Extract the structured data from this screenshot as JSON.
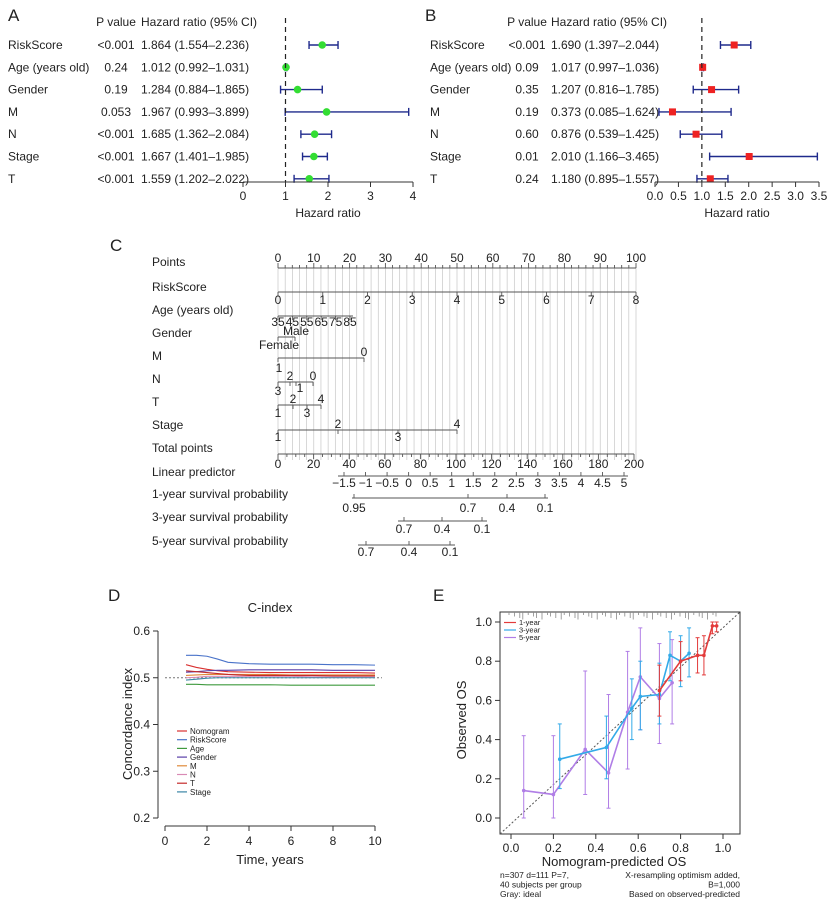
{
  "panels": {
    "a": "A",
    "b": "B",
    "c": "C",
    "d": "D",
    "e": "E"
  },
  "chart_data": [
    {
      "type": "forest",
      "panel": "A",
      "col_headers": [
        "P value",
        "Hazard ratio (95% CI)"
      ],
      "xlabel": "Hazard ratio",
      "xlim": [
        0,
        4
      ],
      "xticks": [
        "0",
        "1",
        "2",
        "3",
        "4"
      ],
      "reference": 1,
      "marker_color": "#33dd33",
      "rows": [
        {
          "label": "RiskScore",
          "p": "<0.001",
          "hr_text": "1.864 (1.554–2.236)",
          "hr": 1.864,
          "lo": 1.554,
          "hi": 2.236
        },
        {
          "label": "Age (years old)",
          "p": "0.24",
          "hr_text": "1.012 (0.992–1.031)",
          "hr": 1.012,
          "lo": 0.992,
          "hi": 1.031
        },
        {
          "label": "Gender",
          "p": "0.19",
          "hr_text": "1.284 (0.884–1.865)",
          "hr": 1.284,
          "lo": 0.884,
          "hi": 1.865
        },
        {
          "label": "M",
          "p": "0.053",
          "hr_text": "1.967 (0.993–3.899)",
          "hr": 1.967,
          "lo": 0.993,
          "hi": 3.899
        },
        {
          "label": "N",
          "p": "<0.001",
          "hr_text": "1.685 (1.362–2.084)",
          "hr": 1.685,
          "lo": 1.362,
          "hi": 2.084
        },
        {
          "label": "Stage",
          "p": "<0.001",
          "hr_text": "1.667 (1.401–1.985)",
          "hr": 1.667,
          "lo": 1.401,
          "hi": 1.985
        },
        {
          "label": "T",
          "p": "<0.001",
          "hr_text": "1.559 (1.202–2.022)",
          "hr": 1.559,
          "lo": 1.202,
          "hi": 2.022
        }
      ]
    },
    {
      "type": "forest",
      "panel": "B",
      "col_headers": [
        "P value",
        "Hazard ratio (95% CI)"
      ],
      "xlabel": "Hazard ratio",
      "xlim": [
        0,
        3.5
      ],
      "xticks": [
        "0.0",
        "0.5",
        "1.0",
        "1.5",
        "2.0",
        "2.5",
        "3.0",
        "3.5"
      ],
      "reference": 1,
      "marker_color": "#ee2222",
      "rows": [
        {
          "label": "RiskScore",
          "p": "<0.001",
          "hr_text": "1.690 (1.397–2.044)",
          "hr": 1.69,
          "lo": 1.397,
          "hi": 2.044
        },
        {
          "label": "Age (years old)",
          "p": "0.09",
          "hr_text": "1.017 (0.997–1.036)",
          "hr": 1.017,
          "lo": 0.997,
          "hi": 1.036
        },
        {
          "label": "Gender",
          "p": "0.35",
          "hr_text": "1.207 (0.816–1.785)",
          "hr": 1.207,
          "lo": 0.816,
          "hi": 1.785
        },
        {
          "label": "M",
          "p": "0.19",
          "hr_text": "0.373 (0.085–1.624)",
          "hr": 0.373,
          "lo": 0.085,
          "hi": 1.624
        },
        {
          "label": "N",
          "p": "0.60",
          "hr_text": "0.876 (0.539–1.425)",
          "hr": 0.876,
          "lo": 0.539,
          "hi": 1.425
        },
        {
          "label": "Stage",
          "p": "0.01",
          "hr_text": "2.010 (1.166–3.465)",
          "hr": 2.01,
          "lo": 1.166,
          "hi": 3.465
        },
        {
          "label": "T",
          "p": "0.24",
          "hr_text": "1.180 (0.895–1.557)",
          "hr": 1.18,
          "lo": 0.895,
          "hi": 1.557
        }
      ]
    },
    {
      "type": "nomogram",
      "panel": "C",
      "rows": [
        {
          "label": "Points",
          "labels": [
            "0",
            "10",
            "20",
            "30",
            "40",
            "50",
            "60",
            "70",
            "80",
            "90",
            "100"
          ]
        },
        {
          "label": "RiskScore",
          "labels": [
            "0",
            "1",
            "2",
            "3",
            "4",
            "5",
            "6",
            "7",
            "8"
          ]
        },
        {
          "label": "Age (years old)",
          "labels": [
            "35",
            "45",
            "55",
            "65",
            "75",
            "85"
          ]
        },
        {
          "label": "Gender",
          "labels": [
            "Male",
            "Female"
          ]
        },
        {
          "label": "M",
          "labels": [
            "0",
            "1"
          ]
        },
        {
          "label": "N",
          "labels": [
            "2",
            "0",
            "3",
            "1"
          ]
        },
        {
          "label": "T",
          "labels": [
            "2",
            "4",
            "1",
            "3"
          ]
        },
        {
          "label": "Stage",
          "labels": [
            "2",
            "4",
            "1",
            "3"
          ]
        },
        {
          "label": "Total points",
          "labels": [
            "0",
            "20",
            "40",
            "60",
            "80",
            "100",
            "120",
            "140",
            "160",
            "180",
            "200"
          ]
        },
        {
          "label": "Linear predictor",
          "labels": [
            "−1.5",
            "−1",
            "−0.5",
            "0",
            "0.5",
            "1",
            "1.5",
            "2",
            "2.5",
            "3",
            "3.5",
            "4",
            "4.5",
            "5"
          ]
        },
        {
          "label": "1-year survival probability",
          "labels": [
            "0.95",
            "0.7",
            "0.4",
            "0.1"
          ]
        },
        {
          "label": "3-year survival probability",
          "labels": [
            "0.7",
            "0.4",
            "0.1"
          ]
        },
        {
          "label": "5-year survival probability",
          "labels": [
            "0.7",
            "0.4",
            "0.1"
          ]
        }
      ]
    },
    {
      "type": "line",
      "panel": "D",
      "title": "C-index",
      "xlabel": "Time, years",
      "ylabel": "Concordance index",
      "xlim": [
        0,
        10
      ],
      "ylim": [
        0.2,
        0.6
      ],
      "xticks": [
        "0",
        "2",
        "4",
        "6",
        "8",
        "10"
      ],
      "yticks": [
        "0.2",
        "0.3",
        "0.4",
        "0.5",
        "0.6"
      ],
      "reference": 0.5,
      "x": [
        1,
        1.5,
        2,
        2.5,
        3,
        4,
        5,
        6,
        7,
        8,
        9,
        10
      ],
      "series": [
        {
          "name": "Nomogram",
          "color": "#d93030",
          "values": [
            0.528,
            0.522,
            0.518,
            0.515,
            0.513,
            0.512,
            0.511,
            0.511,
            0.511,
            0.511,
            0.511,
            0.51
          ]
        },
        {
          "name": "RiskScore",
          "color": "#4a73c9",
          "values": [
            0.548,
            0.548,
            0.546,
            0.54,
            0.533,
            0.53,
            0.529,
            0.529,
            0.529,
            0.528,
            0.528,
            0.527
          ]
        },
        {
          "name": "Age",
          "color": "#3f9a3f",
          "values": [
            0.486,
            0.486,
            0.485,
            0.485,
            0.485,
            0.485,
            0.485,
            0.484,
            0.484,
            0.484,
            0.484,
            0.484
          ]
        },
        {
          "name": "Gender",
          "color": "#5a3fa8",
          "values": [
            0.512,
            0.513,
            0.515,
            0.516,
            0.516,
            0.517,
            0.517,
            0.517,
            0.517,
            0.516,
            0.516,
            0.516
          ]
        },
        {
          "name": "M",
          "color": "#e08a3a",
          "values": [
            0.505,
            0.506,
            0.507,
            0.507,
            0.507,
            0.507,
            0.507,
            0.506,
            0.506,
            0.506,
            0.506,
            0.506
          ]
        },
        {
          "name": "N",
          "color": "#d98ab5",
          "values": [
            0.5,
            0.501,
            0.503,
            0.503,
            0.503,
            0.503,
            0.503,
            0.503,
            0.502,
            0.502,
            0.502,
            0.502
          ]
        },
        {
          "name": "T",
          "color": "#c42a2a",
          "values": [
            0.515,
            0.513,
            0.511,
            0.509,
            0.507,
            0.505,
            0.505,
            0.505,
            0.505,
            0.504,
            0.504,
            0.504
          ]
        },
        {
          "name": "Stage",
          "color": "#3a86a6",
          "values": [
            0.495,
            0.497,
            0.499,
            0.5,
            0.5,
            0.5,
            0.5,
            0.5,
            0.5,
            0.5,
            0.5,
            0.5
          ]
        }
      ]
    },
    {
      "type": "calibration",
      "panel": "E",
      "xlabel": "Nomogram-predicted OS",
      "ylabel": "Observed OS",
      "xlim": [
        0,
        1
      ],
      "ylim": [
        0,
        1
      ],
      "xticks": [
        "0.0",
        "0.2",
        "0.4",
        "0.6",
        "0.8",
        "1.0"
      ],
      "yticks": [
        "0.0",
        "0.2",
        "0.4",
        "0.6",
        "0.8",
        "1.0"
      ],
      "series": [
        {
          "name": "1-year",
          "color": "#e33b3b",
          "x": [
            0.7,
            0.8,
            0.88,
            0.91,
            0.95,
            0.97
          ],
          "y": [
            0.65,
            0.8,
            0.83,
            0.83,
            0.98,
            0.98
          ],
          "lo": [
            0.52,
            0.7,
            0.74,
            0.73,
            0.94,
            0.95
          ],
          "hi": [
            0.78,
            0.9,
            0.92,
            0.93,
            1.0,
            1.0
          ]
        },
        {
          "name": "3-year",
          "color": "#33aae8",
          "x": [
            0.23,
            0.45,
            0.57,
            0.61,
            0.7,
            0.75,
            0.8,
            0.84
          ],
          "y": [
            0.3,
            0.36,
            0.56,
            0.62,
            0.63,
            0.83,
            0.8,
            0.84
          ],
          "lo": [
            0.15,
            0.2,
            0.4,
            0.45,
            0.48,
            0.7,
            0.67,
            0.72
          ],
          "hi": [
            0.48,
            0.52,
            0.71,
            0.8,
            0.79,
            0.95,
            0.93,
            0.97
          ]
        },
        {
          "name": "5-year",
          "color": "#b07ee6",
          "x": [
            0.06,
            0.2,
            0.35,
            0.46,
            0.55,
            0.61,
            0.7,
            0.76
          ],
          "y": [
            0.14,
            0.12,
            0.35,
            0.23,
            0.54,
            0.72,
            0.61,
            0.69
          ],
          "lo": [
            0.0,
            0.0,
            0.12,
            0.05,
            0.25,
            0.45,
            0.38,
            0.48
          ],
          "hi": [
            0.42,
            0.42,
            0.75,
            0.63,
            0.85,
            0.97,
            0.89,
            0.91
          ]
        }
      ],
      "footer_left": [
        "n=307 d=111 P=7,",
        "40 subjects per group",
        "Gray: ideal"
      ],
      "footer_right": [
        "X-resampling optimism added,",
        "B=1,000",
        "Based on observed-predicted"
      ]
    }
  ]
}
